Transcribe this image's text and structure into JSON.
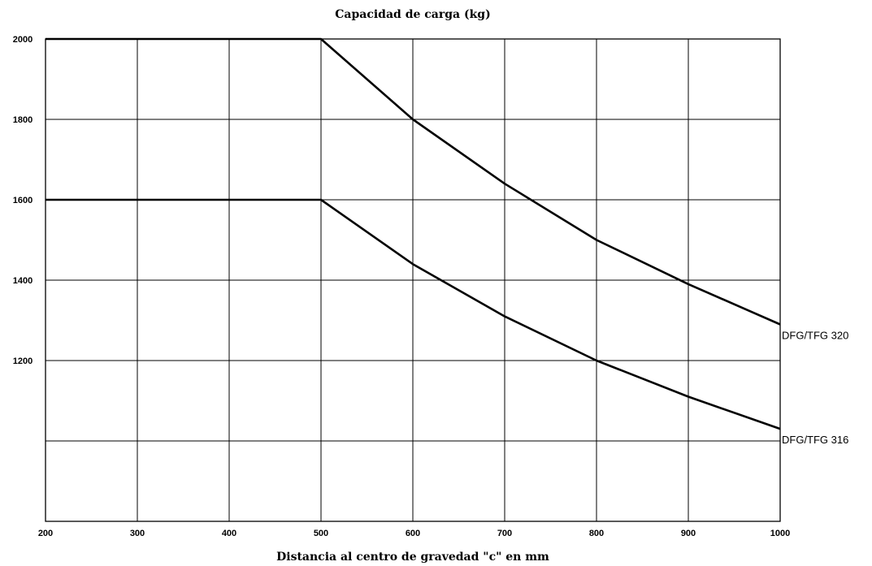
{
  "chart_data": {
    "type": "line",
    "title": "Capacidad de carga (kg)",
    "xlabel": "Distancia al centro de gravedad \"c\" en mm",
    "ylabel": "",
    "xlim": [
      200,
      1000
    ],
    "ylim": [
      800,
      2000
    ],
    "x_ticks": [
      200,
      300,
      400,
      500,
      600,
      700,
      800,
      900,
      1000
    ],
    "y_ticks": [
      1200,
      1400,
      1600,
      1800,
      2000
    ],
    "y_gridlines": [
      1000,
      1200,
      1400,
      1600,
      1800,
      2000
    ],
    "grid": true,
    "x": [
      200,
      300,
      400,
      500,
      600,
      700,
      800,
      900,
      1000
    ],
    "series": [
      {
        "name": "DFG/TFG 320",
        "values": [
          2000,
          2000,
          2000,
          2000,
          1800,
          1640,
          1500,
          1390,
          1290
        ]
      },
      {
        "name": "DFG/TFG 316",
        "values": [
          1600,
          1600,
          1600,
          1600,
          1440,
          1310,
          1200,
          1110,
          1030
        ]
      }
    ]
  }
}
